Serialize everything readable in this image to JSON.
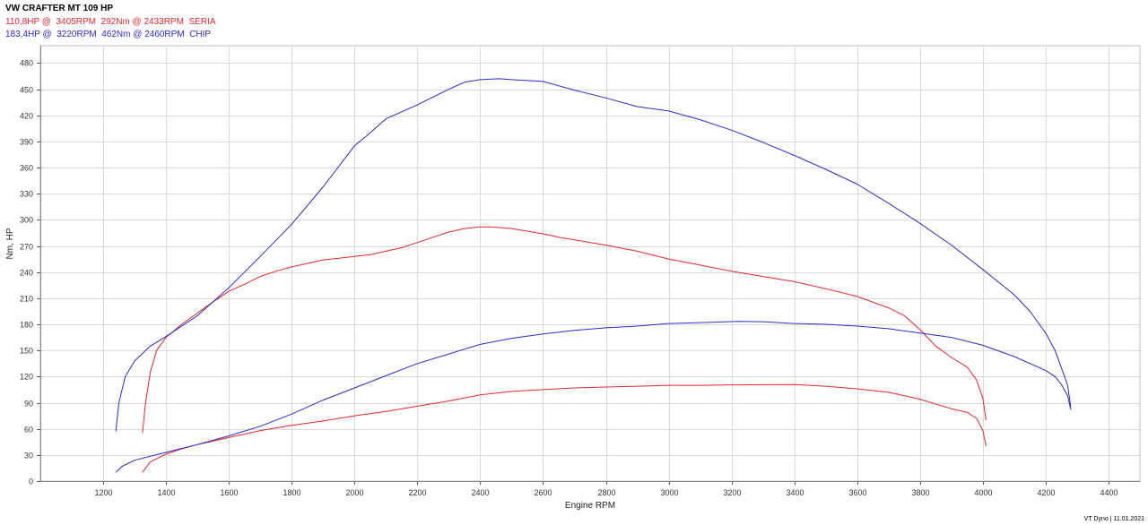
{
  "title": "VW CRAFTER MT 109 HP",
  "legend": [
    {
      "text": "110,8HP @  3405RPM  292Nm @ 2433RPM  SERIA",
      "color": "#e0282f"
    },
    {
      "text": "183,4HP @  3220RPM  462Nm @ 2460RPM  CHIP",
      "color": "#2b2bc8"
    }
  ],
  "footer": "VT Dyno | 11.01.2021",
  "chart_data": {
    "type": "line",
    "title": "VW CRAFTER MT 109 HP",
    "xlabel": "Engine RPM",
    "ylabel": "Nm, HP",
    "xlim": [
      1000,
      4500
    ],
    "ylim": [
      0,
      500
    ],
    "xticks": [
      1200,
      1400,
      1600,
      1800,
      2000,
      2200,
      2400,
      2600,
      2800,
      3000,
      3200,
      3400,
      3600,
      3800,
      4000,
      4200,
      4400
    ],
    "yticks": [
      0,
      30,
      60,
      90,
      120,
      150,
      180,
      210,
      240,
      270,
      300,
      330,
      360,
      390,
      420,
      450,
      480
    ],
    "grid": true,
    "series": [
      {
        "name": "SERIA",
        "color": "#e0282f",
        "x": [
          1325,
          1335,
          1350,
          1370,
          1400,
          1450,
          1500,
          1550,
          1600,
          1650,
          1700,
          1750,
          1800,
          1850,
          1900,
          1950,
          2000,
          2050,
          2100,
          2150,
          2200,
          2250,
          2300,
          2350,
          2400,
          2433,
          2500,
          2550,
          2600,
          2650,
          2700,
          2800,
          2900,
          3000,
          3100,
          3200,
          3300,
          3400,
          3500,
          3600,
          3700,
          3750,
          3800,
          3850,
          3900,
          3950,
          3980,
          4000,
          4010
        ],
        "values": [
          55,
          90,
          125,
          150,
          165,
          180,
          193,
          206,
          218,
          226,
          235,
          241,
          246,
          250,
          254,
          256,
          258,
          260,
          264,
          268,
          274,
          280,
          286,
          290,
          292,
          292,
          290,
          287,
          284,
          280,
          277,
          271,
          264,
          255,
          248,
          241,
          235,
          229,
          221,
          212,
          199,
          190,
          174,
          155,
          142,
          131,
          116,
          95,
          70
        ]
      },
      {
        "name": "SERIA",
        "color": "#e0282f",
        "x": [
          1325,
          1350,
          1400,
          1450,
          1500,
          1600,
          1700,
          1800,
          1900,
          2000,
          2100,
          2200,
          2300,
          2400,
          2500,
          2600,
          2700,
          2800,
          2900,
          3000,
          3100,
          3200,
          3300,
          3405,
          3500,
          3600,
          3700,
          3800,
          3900,
          3950,
          3980,
          4000,
          4010
        ],
        "values": [
          10,
          22,
          31,
          37,
          42,
          50,
          58,
          64,
          69,
          75,
          80,
          86,
          92,
          99,
          103,
          105,
          107,
          108,
          109,
          110,
          110,
          110.5,
          110.7,
          110.8,
          109,
          106,
          102,
          94,
          83,
          79,
          72,
          58,
          40
        ]
      },
      {
        "name": "CHIP",
        "color": "#2b2bc8",
        "x": [
          1240,
          1250,
          1270,
          1300,
          1350,
          1400,
          1500,
          1600,
          1700,
          1800,
          1900,
          2000,
          2050,
          2100,
          2200,
          2300,
          2350,
          2400,
          2460,
          2500,
          2600,
          2700,
          2800,
          2900,
          3000,
          3100,
          3200,
          3300,
          3400,
          3500,
          3600,
          3700,
          3800,
          3900,
          4000,
          4100,
          4150,
          4200,
          4230,
          4250,
          4270,
          4280
        ],
        "values": [
          57,
          90,
          120,
          138,
          155,
          166,
          190,
          222,
          258,
          295,
          338,
          385,
          400,
          416,
          432,
          450,
          458,
          461,
          462,
          461,
          459,
          449,
          440,
          430,
          425,
          415,
          403,
          389,
          374,
          358,
          341,
          319,
          296,
          271,
          243,
          214,
          195,
          170,
          150,
          130,
          110,
          85
        ]
      },
      {
        "name": "CHIP",
        "color": "#2b2bc8",
        "x": [
          1240,
          1260,
          1300,
          1400,
          1500,
          1600,
          1700,
          1800,
          1900,
          2000,
          2100,
          2200,
          2300,
          2400,
          2500,
          2600,
          2700,
          2800,
          2900,
          3000,
          3100,
          3220,
          3300,
          3400,
          3500,
          3600,
          3700,
          3800,
          3900,
          4000,
          4100,
          4200,
          4230,
          4250,
          4270,
          4280
        ],
        "values": [
          10,
          17,
          24,
          33,
          42,
          52,
          63,
          77,
          93,
          107,
          121,
          135,
          146,
          157,
          164,
          169,
          173,
          176,
          178,
          181,
          182,
          183.4,
          183,
          181,
          180,
          178,
          175,
          170,
          165,
          156,
          143,
          127,
          120,
          111,
          98,
          82
        ]
      }
    ]
  }
}
